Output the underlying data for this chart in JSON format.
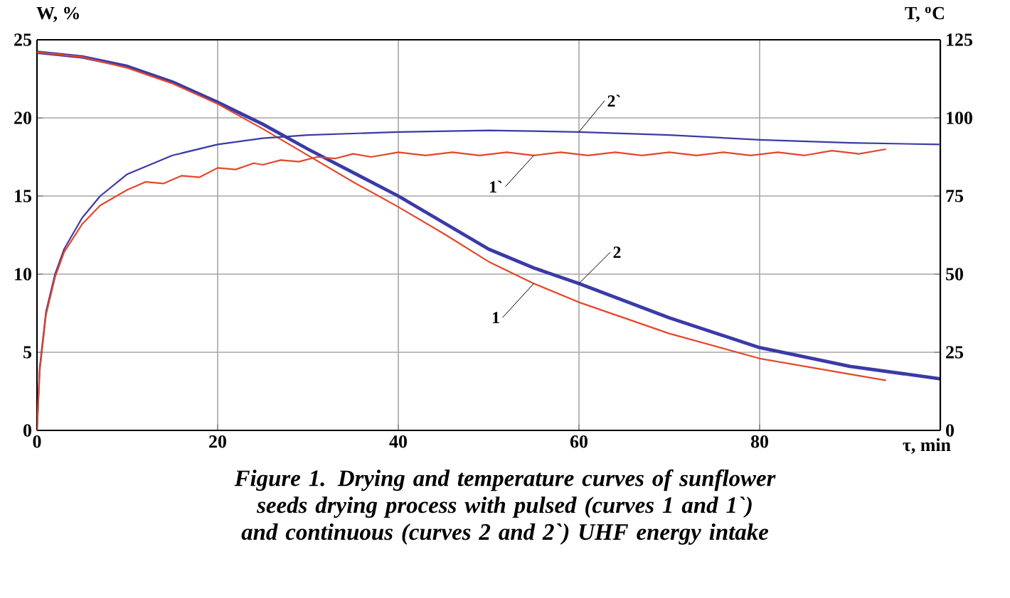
{
  "chart_data": {
    "type": "line",
    "title": "*Figure 1. Drying and temperature curves of sunflower seeds drying process with pulsed (curves 1 and 1`) and continuous (curves 2 and 2`) UHF energy intake*",
    "xlabel": "τ, min",
    "ylabel": "W, %",
    "y2label": "T, $^{o}$C",
    "xlim": [
      0,
      100
    ],
    "xticks": [
      0,
      20,
      40,
      60,
      80
    ],
    "ylim": [
      0,
      25
    ],
    "yticks": [
      0,
      5,
      10,
      15,
      20,
      25
    ],
    "y2lim": [
      0,
      125
    ],
    "y2ticks": [
      0,
      25,
      50,
      75,
      100,
      125
    ],
    "grid": true,
    "series": [
      {
        "name": "2",
        "color": "#3a3aa8",
        "x": [
          0,
          5,
          10,
          15,
          20,
          25,
          30,
          35,
          40,
          45,
          50,
          55,
          60,
          70,
          80,
          90,
          100
        ],
        "values": [
          24.2,
          23.9,
          23.3,
          22.3,
          21.0,
          19.6,
          18.0,
          16.5,
          15.0,
          13.3,
          11.6,
          10.4,
          9.4,
          7.2,
          5.3,
          4.1,
          3.3
        ]
      },
      {
        "name": "1",
        "color": "#e4472a",
        "x": [
          0,
          5,
          10,
          15,
          20,
          25,
          30,
          35,
          40,
          45,
          50,
          55,
          60,
          70,
          80,
          90,
          94
        ],
        "values": [
          24.2,
          23.9,
          23.2,
          22.2,
          20.9,
          19.3,
          17.6,
          15.9,
          14.3,
          12.6,
          10.8,
          9.4,
          8.2,
          6.2,
          4.6,
          3.6,
          3.2
        ]
      },
      {
        "name": "2`",
        "color": "#3a3aa8",
        "axis": "y2",
        "x": [
          0,
          0.3,
          1,
          2,
          3,
          5,
          7,
          10,
          15,
          20,
          25,
          30,
          40,
          50,
          60,
          70,
          80,
          90,
          100
        ],
        "values": [
          0,
          20,
          38,
          50,
          58,
          68,
          75,
          82,
          88,
          91.5,
          93.5,
          94.5,
          95.5,
          96,
          95.5,
          94.5,
          93,
          92,
          91.5
        ]
      },
      {
        "name": "1`",
        "color": "#e4472a",
        "axis": "y2",
        "x": [
          0,
          0.3,
          1,
          2,
          3,
          5,
          7,
          10,
          12,
          14,
          16,
          18,
          20,
          22,
          24,
          25,
          27,
          29,
          31,
          33,
          35,
          37,
          40,
          43,
          46,
          49,
          52,
          55,
          58,
          61,
          64,
          67,
          70,
          73,
          76,
          79,
          82,
          85,
          88,
          91,
          94
        ],
        "values": [
          0,
          19,
          37,
          49,
          57,
          66,
          72,
          77,
          79.5,
          79,
          81.5,
          81,
          84,
          83.5,
          85.5,
          85,
          86.5,
          86,
          87.5,
          87,
          88.5,
          87.5,
          89,
          88,
          89,
          88,
          89,
          88,
          89,
          88,
          89,
          88,
          89,
          88,
          89,
          88,
          89,
          88,
          89.5,
          88.5,
          90
        ]
      }
    ]
  }
}
